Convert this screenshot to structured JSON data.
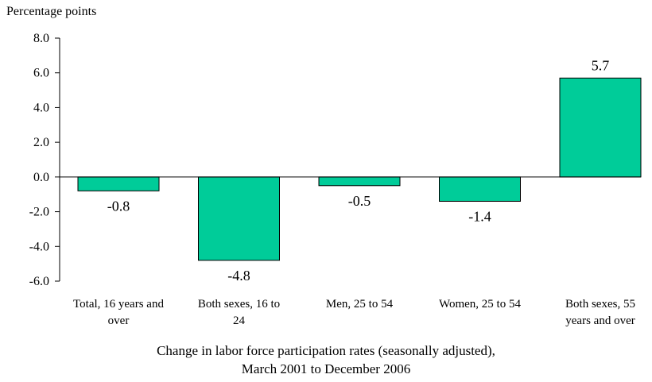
{
  "chart_data": {
    "type": "bar",
    "ylabel": "Percentage points",
    "xlabel": [
      "Change in labor force participation rates (seasonally adjusted),",
      "March 2001 to December 2006"
    ],
    "categories": [
      [
        "Total, 16 years and",
        "over"
      ],
      [
        "Both sexes, 16 to",
        "24"
      ],
      [
        "Men, 25 to 54"
      ],
      [
        "Women, 25 to 54"
      ],
      [
        "Both sexes, 55",
        "years and over"
      ]
    ],
    "values": [
      -0.8,
      -4.8,
      -0.5,
      -1.4,
      5.7
    ],
    "value_labels": [
      "-0.8",
      "-4.8",
      "-0.5",
      "-1.4",
      "5.7"
    ],
    "ylim": [
      -6,
      8
    ],
    "yticks": [
      8,
      6,
      4,
      2,
      0,
      -2,
      -4,
      -6
    ],
    "ytick_labels": [
      "8.0",
      "6.0",
      "4.0",
      "2.0",
      "0.0",
      "-2.0",
      "-4.0",
      "-6.0"
    ],
    "bar_color": "#00CC99",
    "grid": false,
    "legend": "none"
  }
}
